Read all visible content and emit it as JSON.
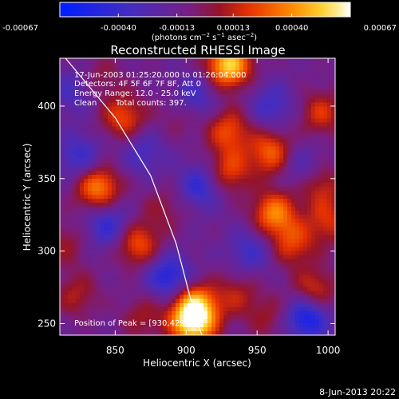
{
  "chart_data": {
    "type": "heatmap",
    "title": "Reconstructed RHESSI Image",
    "xlabel": "Heliocentric X (arcsec)",
    "ylabel": "Heliocentric Y (arcsec)",
    "xlim": [
      811,
      1005
    ],
    "ylim": [
      242,
      433
    ],
    "x_ticks": [
      "850",
      "900",
      "950",
      "1000"
    ],
    "x_tick_values": [
      850,
      900,
      950,
      1000
    ],
    "y_ticks": [
      "250",
      "300",
      "350",
      "400"
    ],
    "y_tick_values": [
      250,
      300,
      350,
      400
    ],
    "colorbar": {
      "ticks": [
        "-0.00067",
        "-0.00040",
        "-0.00013",
        "0.00013",
        "0.00040",
        "0.00067"
      ],
      "tick_values": [
        -0.00067,
        -0.0004,
        -0.00013,
        0.00013,
        0.0004,
        0.00067
      ],
      "range": [
        -0.00067,
        0.00067
      ],
      "unit_parts": [
        "(photons cm",
        "−2",
        " s",
        "−1",
        " asec",
        "−2",
        ")"
      ]
    },
    "annotations": {
      "time_range": "17-Jun-2003 01:25:20.000 to 01:26:04.000",
      "detectors": "Detectors: 4F 5F 6F 7F 8F, Att 0",
      "energy": "Energy Range: 12.0 - 25.0 keV",
      "clean": "Clean",
      "counts": "Total counts: 397.",
      "peak": "Position of Peak = [930,429]"
    },
    "limb_curve": [
      [
        815,
        433
      ],
      [
        850,
        392
      ],
      [
        875,
        352
      ],
      [
        893,
        305
      ],
      [
        905,
        260
      ],
      [
        911,
        242
      ]
    ],
    "sources": [
      {
        "x": 930,
        "y": 428,
        "value": 0.00067
      },
      {
        "x": 905,
        "y": 250,
        "value": 0.00062
      },
      {
        "x": 906,
        "y": 262,
        "value": 0.00055
      },
      {
        "x": 838,
        "y": 344,
        "value": 0.0005
      },
      {
        "x": 962,
        "y": 326,
        "value": 0.00048
      },
      {
        "x": 960,
        "y": 368,
        "value": 0.00042
      },
      {
        "x": 930,
        "y": 383,
        "value": 0.00036
      },
      {
        "x": 930,
        "y": 355,
        "value": 0.00034
      },
      {
        "x": 856,
        "y": 392,
        "value": 0.00036
      },
      {
        "x": 866,
        "y": 305,
        "value": 0.00038
      },
      {
        "x": 990,
        "y": 272,
        "value": 0.00035
      },
      {
        "x": 975,
        "y": 305,
        "value": 0.00032
      },
      {
        "x": 1000,
        "y": 320,
        "value": 0.00028
      },
      {
        "x": 995,
        "y": 395,
        "value": 0.0003
      },
      {
        "x": 995,
        "y": 345,
        "value": 0.00026
      },
      {
        "x": 823,
        "y": 270,
        "value": 0.00022
      },
      {
        "x": 815,
        "y": 305,
        "value": 0.00018
      },
      {
        "x": 885,
        "y": 330,
        "value": 0.00016
      },
      {
        "x": 935,
        "y": 270,
        "value": 0.00022
      },
      {
        "x": 958,
        "y": 255,
        "value": 0.00018
      },
      {
        "x": 897,
        "y": 395,
        "value": 0.00018
      },
      {
        "x": 870,
        "y": 255,
        "value": 0.0002
      },
      {
        "x": 840,
        "y": 420,
        "value": 0.00015
      },
      {
        "x": 888,
        "y": 282,
        "value": -0.0004
      },
      {
        "x": 910,
        "y": 345,
        "value": -0.00032
      },
      {
        "x": 845,
        "y": 318,
        "value": -0.00032
      },
      {
        "x": 985,
        "y": 255,
        "value": -0.0005
      },
      {
        "x": 905,
        "y": 405,
        "value": -0.0003
      },
      {
        "x": 960,
        "y": 400,
        "value": -0.00025
      },
      {
        "x": 825,
        "y": 365,
        "value": -0.00028
      },
      {
        "x": 945,
        "y": 300,
        "value": -0.00025
      },
      {
        "x": 870,
        "y": 368,
        "value": -0.00022
      },
      {
        "x": 980,
        "y": 360,
        "value": -0.0002
      },
      {
        "x": 820,
        "y": 410,
        "value": -0.0002
      }
    ]
  },
  "footer": {
    "timestamp": "8-Jun-2013 20:22"
  }
}
